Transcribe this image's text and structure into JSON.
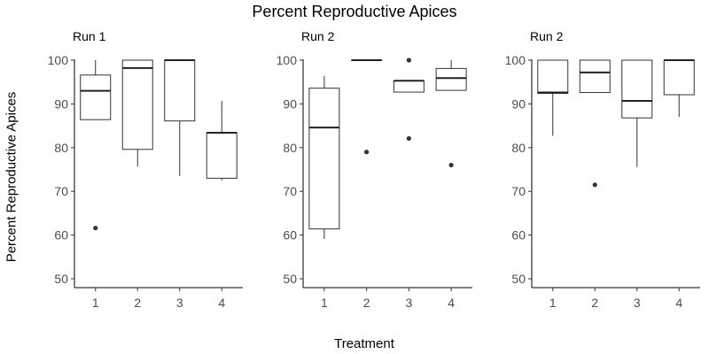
{
  "figure": {
    "title": "Percent Reproductive Apices",
    "xlabel": "Treatment",
    "ylabel": "Percent Reproductive Apices"
  },
  "chart_data": [
    {
      "type": "box",
      "title": "Run 1",
      "xlabel": "Treatment",
      "ylabel": "Percent Reproductive Apices",
      "categories": [
        "1",
        "2",
        "3",
        "4"
      ],
      "ylim": [
        48,
        102
      ],
      "yticks": [
        50,
        60,
        70,
        80,
        90,
        100
      ],
      "grid": false,
      "boxes": [
        {
          "category": "1",
          "min": 86.4,
          "q1": 86.4,
          "median": 93.0,
          "q3": 96.6,
          "max": 100.0,
          "outliers": [
            61.6
          ]
        },
        {
          "category": "2",
          "min": 75.7,
          "q1": 79.6,
          "median": 98.2,
          "q3": 100.0,
          "max": 100.0,
          "outliers": []
        },
        {
          "category": "3",
          "min": 73.5,
          "q1": 86.1,
          "median": 100.0,
          "q3": 100.0,
          "max": 100.0,
          "outliers": []
        },
        {
          "category": "4",
          "min": 72.5,
          "q1": 73.0,
          "median": 83.4,
          "q3": 83.4,
          "max": 90.7,
          "outliers": []
        }
      ]
    },
    {
      "type": "box",
      "title": "Run 2",
      "xlabel": "Treatment",
      "ylabel": "Percent Reproductive Apices",
      "categories": [
        "1",
        "2",
        "3",
        "4"
      ],
      "ylim": [
        48,
        102
      ],
      "yticks": [
        50,
        60,
        70,
        80,
        90,
        100
      ],
      "grid": false,
      "boxes": [
        {
          "category": "1",
          "min": 59.1,
          "q1": 61.4,
          "median": 84.6,
          "q3": 93.6,
          "max": 96.4,
          "outliers": []
        },
        {
          "category": "2",
          "min": 100.0,
          "q1": 100.0,
          "median": 100.0,
          "q3": 100.0,
          "max": 100.0,
          "outliers": [
            79.0
          ]
        },
        {
          "category": "3",
          "min": 92.7,
          "q1": 92.7,
          "median": 95.3,
          "q3": 95.3,
          "max": 95.3,
          "outliers": [
            100.0,
            82.1
          ]
        },
        {
          "category": "4",
          "min": 93.1,
          "q1": 93.1,
          "median": 95.9,
          "q3": 98.1,
          "max": 100.0,
          "outliers": [
            76.0
          ]
        }
      ]
    },
    {
      "type": "box",
      "title": "Run 2",
      "xlabel": "Treatment",
      "ylabel": "Percent Reproductive Apices",
      "categories": [
        "1",
        "2",
        "3",
        "4"
      ],
      "ylim": [
        48,
        102
      ],
      "yticks": [
        50,
        60,
        70,
        80,
        90,
        100
      ],
      "grid": false,
      "boxes": [
        {
          "category": "1",
          "min": 82.7,
          "q1": 92.4,
          "median": 92.6,
          "q3": 100.0,
          "max": 100.0,
          "outliers": []
        },
        {
          "category": "2",
          "min": 92.6,
          "q1": 92.6,
          "median": 97.2,
          "q3": 100.0,
          "max": 100.0,
          "outliers": [
            71.5
          ]
        },
        {
          "category": "3",
          "min": 75.6,
          "q1": 86.8,
          "median": 90.7,
          "q3": 100.0,
          "max": 100.0,
          "outliers": []
        },
        {
          "category": "4",
          "min": 87.0,
          "q1": 92.1,
          "median": 100.0,
          "q3": 100.0,
          "max": 100.0,
          "outliers": []
        }
      ]
    }
  ]
}
